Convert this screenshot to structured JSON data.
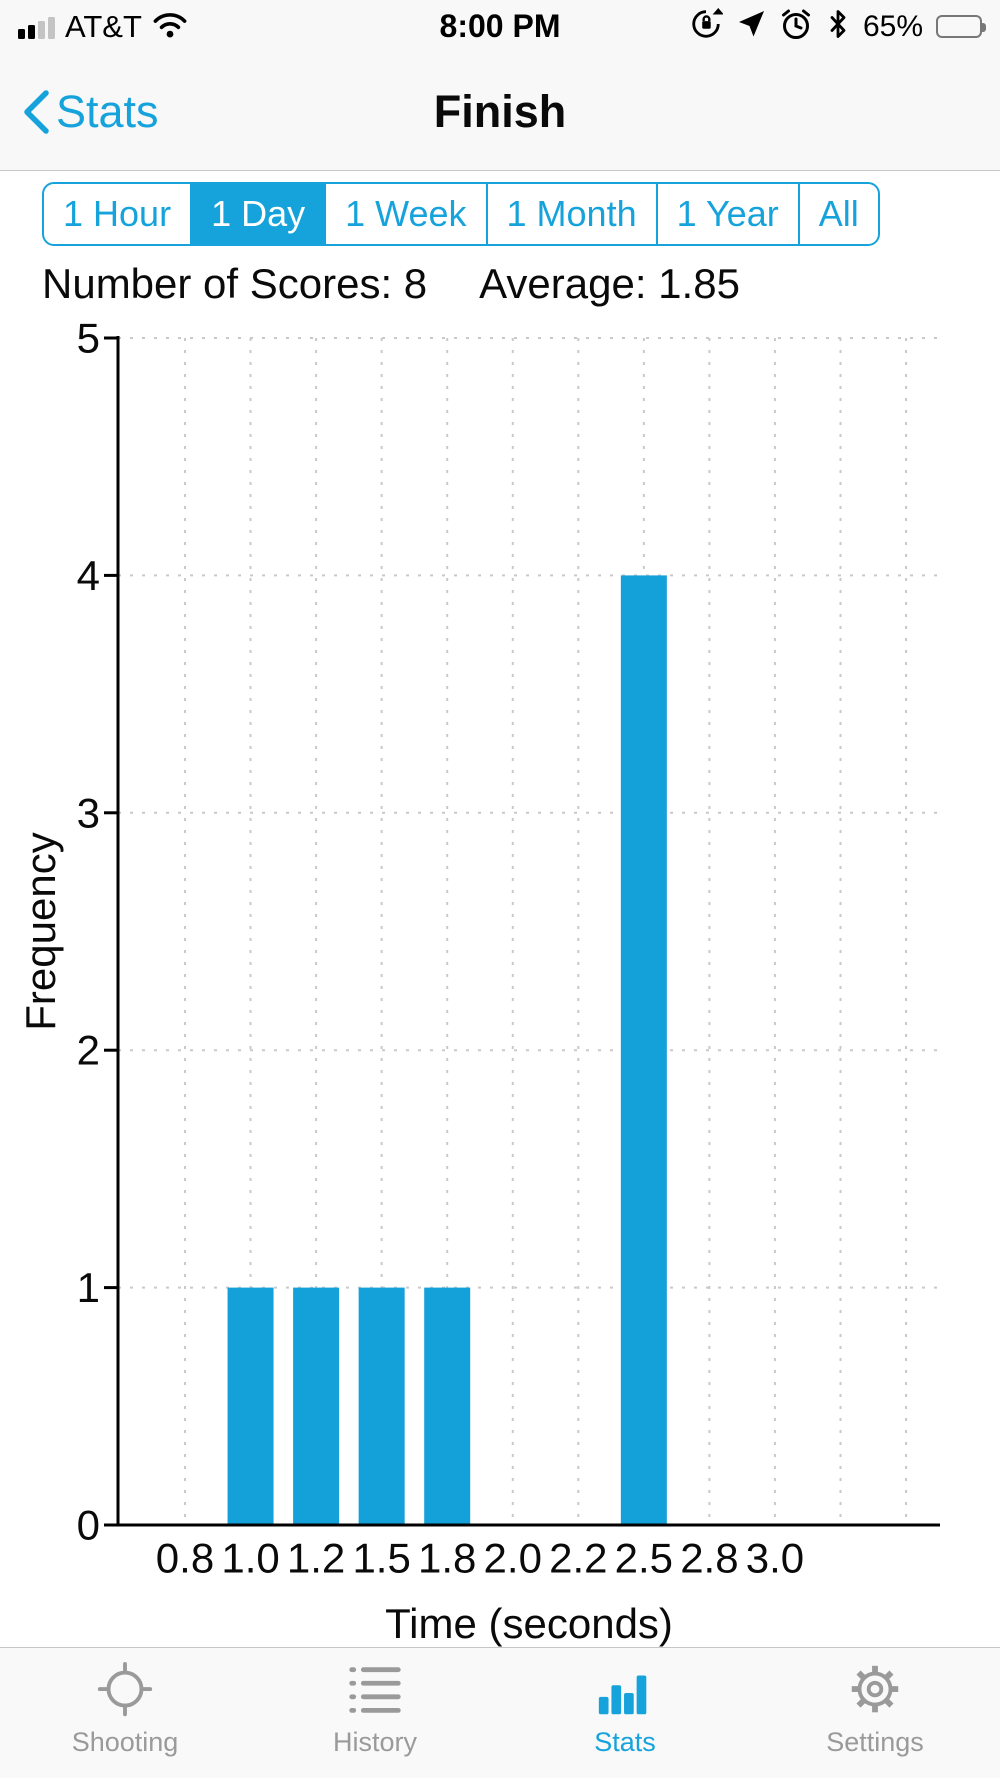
{
  "colors": {
    "accent": "#16a3db",
    "bar": "#14a0d8"
  },
  "status_bar": {
    "carrier": "AT&T",
    "time": "8:00 PM",
    "battery_percent": "65%"
  },
  "nav": {
    "back_label": "Stats",
    "title": "Finish"
  },
  "segmented_control": {
    "options": [
      "1 Hour",
      "1 Day",
      "1 Week",
      "1 Month",
      "1 Year",
      "All"
    ],
    "selected": "1 Day"
  },
  "summary": {
    "scores": "Number of Scores: 8",
    "average": "Average: 1.85"
  },
  "chart_data": {
    "type": "bar",
    "categories": [
      "0.8",
      "1.0",
      "1.2",
      "1.5",
      "1.8",
      "2.0",
      "2.2",
      "2.5",
      "2.8",
      "3.0"
    ],
    "values": [
      0,
      1,
      1,
      1,
      1,
      0,
      0,
      4,
      0,
      0
    ],
    "title": "",
    "xlabel": "Time (seconds)",
    "ylabel": "Frequency",
    "ylim": [
      0,
      5
    ],
    "yticks": [
      0,
      1,
      2,
      3,
      4,
      5
    ],
    "grid": true,
    "bar_color": "#14a0d8"
  },
  "tab_bar": {
    "items": [
      {
        "label": "Shooting",
        "icon": "crosshair-icon",
        "selected": false
      },
      {
        "label": "History",
        "icon": "list-icon",
        "selected": false
      },
      {
        "label": "Stats",
        "icon": "bar-chart-icon",
        "selected": true
      },
      {
        "label": "Settings",
        "icon": "gear-icon",
        "selected": false
      }
    ]
  }
}
